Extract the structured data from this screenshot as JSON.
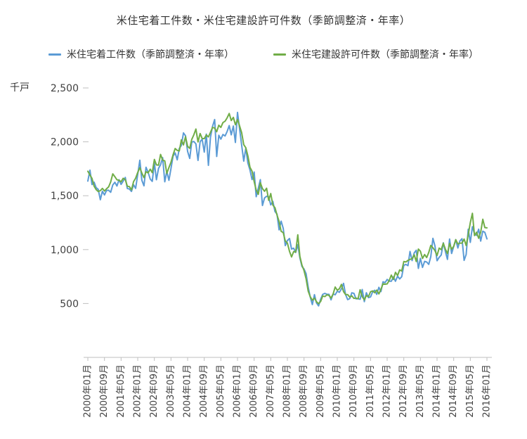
{
  "chart_data": {
    "type": "line",
    "title": "米住宅着工件数・米住宅建設許可件数（季節調整済・年率）",
    "unit_label": "千戸",
    "ylim": [
      0,
      2500
    ],
    "grid": false,
    "legend_position": "top",
    "axis_color": "#BFBFBF",
    "tick_text_color": "#404040",
    "y_ticks": [
      {
        "value": 2500,
        "label": "2,500"
      },
      {
        "value": 2000,
        "label": "2,000"
      },
      {
        "value": 1500,
        "label": "1,500"
      },
      {
        "value": 1000,
        "label": "1,000"
      },
      {
        "value": 500,
        "label": "500"
      }
    ],
    "x_start": "2000年01月",
    "x_end": "2016年01月",
    "x_ticks": [
      {
        "index": 0,
        "label": "2000年01月"
      },
      {
        "index": 8,
        "label": "2000年09月"
      },
      {
        "index": 16,
        "label": "2001年05月"
      },
      {
        "index": 24,
        "label": "2002年01月"
      },
      {
        "index": 32,
        "label": "2002年09月"
      },
      {
        "index": 40,
        "label": "2003年05月"
      },
      {
        "index": 48,
        "label": "2004年01月"
      },
      {
        "index": 56,
        "label": "2004年09月"
      },
      {
        "index": 64,
        "label": "2005年05月"
      },
      {
        "index": 72,
        "label": "2006年01月"
      },
      {
        "index": 80,
        "label": "2006年09月"
      },
      {
        "index": 88,
        "label": "2007年05月"
      },
      {
        "index": 96,
        "label": "2008年01月"
      },
      {
        "index": 104,
        "label": "2008年09月"
      },
      {
        "index": 112,
        "label": "2009年05月"
      },
      {
        "index": 120,
        "label": "2010年01月"
      },
      {
        "index": 128,
        "label": "2010年09月"
      },
      {
        "index": 136,
        "label": "2011年05月"
      },
      {
        "index": 144,
        "label": "2012年01月"
      },
      {
        "index": 152,
        "label": "2012年09月"
      },
      {
        "index": 160,
        "label": "2013年05月"
      },
      {
        "index": 168,
        "label": "2014年01月"
      },
      {
        "index": 176,
        "label": "2014年09月"
      },
      {
        "index": 184,
        "label": "2015年05月"
      },
      {
        "index": 192,
        "label": "2016年01月"
      }
    ],
    "series": [
      {
        "name": "米住宅着工件数（季節調整済・年率）",
        "color": "#5B9BD5",
        "values": [
          1636,
          1737,
          1604,
          1626,
          1575,
          1559,
          1463,
          1541,
          1507,
          1549,
          1551,
          1532,
          1600,
          1625,
          1590,
          1649,
          1605,
          1636,
          1670,
          1567,
          1562,
          1540,
          1602,
          1568,
          1698,
          1829,
          1642,
          1592,
          1764,
          1717,
          1655,
          1633,
          1804,
          1648,
          1753,
          1788,
          1853,
          1629,
          1726,
          1643,
          1751,
          1867,
          1897,
          1833,
          1939,
          1967,
          2083,
          2057,
          1911,
          1846,
          1998,
          2003,
          1981,
          1828,
          2002,
          2024,
          1905,
          2072,
          1782,
          2042,
          2144,
          2207,
          1864,
          2061,
          2025,
          2068,
          2054,
          2095,
          2151,
          2065,
          2147,
          1994,
          2273,
          2119,
          1969,
          1821,
          1942,
          1802,
          1737,
          1650,
          1720,
          1491,
          1570,
          1649,
          1409,
          1480,
          1495,
          1490,
          1415,
          1448,
          1354,
          1330,
          1183,
          1264,
          1197,
          1037,
          1084,
          1103,
          1005,
          1013,
          973,
          1046,
          923,
          844,
          820,
          777,
          652,
          560,
          490,
          582,
          505,
          478,
          540,
          585,
          594,
          586,
          585,
          534,
          588,
          581,
          614,
          604,
          636,
          687,
          583,
          536,
          546,
          599,
          594,
          543,
          545,
          539,
          630,
          517,
          600,
          554,
          561,
          608,
          623,
          585,
          650,
          610,
          702,
          694,
          723,
          706,
          706,
          747,
          706,
          754,
          728,
          749,
          854,
          863,
          851,
          983,
          898,
          969,
          994,
          826,
          919,
          835,
          891,
          885,
          863,
          936,
          1105,
          1034,
          897,
          928,
          950,
          1063,
          984,
          909,
          1098,
          964,
          1028,
          1092,
          1015,
          1081,
          1101,
          900,
          954,
          1190,
          1067,
          1213,
          1147,
          1132,
          1189,
          1079,
          1171,
          1160,
          1099
        ]
      },
      {
        "name": "米住宅建設許可件数（季節調整済・年率）",
        "color": "#70AD47",
        "values": [
          1727,
          1692,
          1661,
          1589,
          1557,
          1539,
          1547,
          1568,
          1544,
          1564,
          1582,
          1628,
          1703,
          1676,
          1648,
          1643,
          1630,
          1662,
          1649,
          1589,
          1584,
          1554,
          1631,
          1662,
          1716,
          1760,
          1710,
          1668,
          1723,
          1712,
          1746,
          1714,
          1837,
          1786,
          1784,
          1883,
          1830,
          1823,
          1707,
          1762,
          1810,
          1880,
          1938,
          1921,
          1916,
          2019,
          1971,
          2047,
          1958,
          1940,
          2022,
          2066,
          2119,
          1999,
          2077,
          2031,
          2030,
          2063,
          2046,
          2088,
          2134,
          2127,
          2094,
          2154,
          2134,
          2179,
          2191,
          2222,
          2263,
          2198,
          2227,
          2159,
          2207,
          2147,
          2085,
          1973,
          1946,
          1869,
          1763,
          1727,
          1631,
          1553,
          1513,
          1621,
          1566,
          1541,
          1569,
          1457,
          1520,
          1413,
          1389,
          1322,
          1261,
          1170,
          1157,
          1080,
          1061,
          984,
          932,
          982,
          978,
          1138,
          937,
          857,
          805,
          730,
          615,
          564,
          531,
          550,
          516,
          498,
          518,
          570,
          564,
          580,
          575,
          551,
          589,
          653,
          623,
          637,
          677,
          610,
          583,
          583,
          559,
          571,
          547,
          550,
          544,
          627,
          563,
          534,
          574,
          563,
          609,
          617,
          600,
          625,
          589,
          631,
          683,
          679,
          682,
          715,
          764,
          723,
          789,
          760,
          812,
          801,
          890,
          885,
          900,
          909,
          915,
          952,
          890,
          1005,
          985,
          918,
          954,
          926,
          974,
          1039,
          1017,
          991,
          945,
          1014,
          1000,
          1059,
          1005,
          963,
          1057,
          1003,
          1031,
          1092,
          1052,
          1060,
          1060,
          1098,
          1038,
          1140,
          1250,
          1337,
          1130,
          1161,
          1105,
          1161,
          1282,
          1204,
          1202
        ]
      }
    ]
  }
}
